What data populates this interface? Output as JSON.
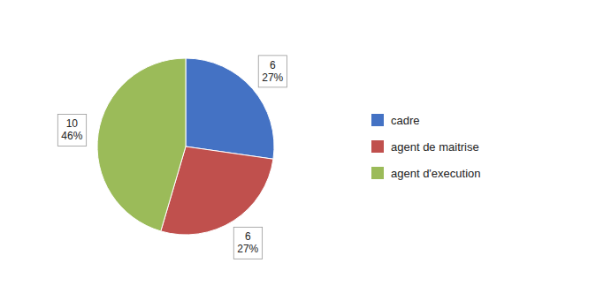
{
  "chart_data": {
    "type": "pie",
    "categories": [
      "cadre",
      "agent de maitrise",
      "agent d'execution"
    ],
    "values": [
      6,
      6,
      10
    ],
    "percentages": [
      27,
      27,
      46
    ],
    "percentage_labels": [
      "27%",
      "27%",
      "46%"
    ],
    "colors": [
      "#4472C4",
      "#C0504D",
      "#9BBB59"
    ],
    "data_labels": true,
    "legend": "right"
  }
}
